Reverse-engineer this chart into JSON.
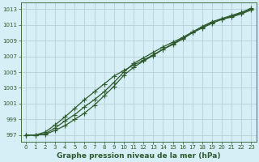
{
  "title": "Graphe pression niveau de la mer (hPa)",
  "background_color": "#d6eef5",
  "grid_color": "#b0c8d0",
  "line_color": "#2d5a2d",
  "x_ticks": [
    0,
    1,
    2,
    3,
    4,
    5,
    6,
    7,
    8,
    9,
    10,
    11,
    12,
    13,
    14,
    15,
    16,
    17,
    18,
    19,
    20,
    21,
    22,
    23
  ],
  "y_ticks": [
    997,
    999,
    1001,
    1003,
    1005,
    1007,
    1009,
    1011,
    1013
  ],
  "xlim": [
    -0.5,
    23.5
  ],
  "ylim": [
    996.2,
    1013.8
  ],
  "series1": [
    997.0,
    997.0,
    997.1,
    997.6,
    998.2,
    999.0,
    999.8,
    1000.8,
    1002.0,
    1003.2,
    1004.6,
    1005.6,
    1006.4,
    1007.1,
    1007.9,
    1008.5,
    1009.2,
    1010.0,
    1010.7,
    1011.3,
    1011.7,
    1012.1,
    1012.5,
    1013.0
  ],
  "series2": [
    997.0,
    997.0,
    997.2,
    997.9,
    998.8,
    999.6,
    1000.6,
    1001.5,
    1002.5,
    1003.7,
    1005.0,
    1006.1,
    1006.8,
    1007.5,
    1008.2,
    1008.8,
    1009.4,
    1010.1,
    1010.8,
    1011.4,
    1011.8,
    1012.2,
    1012.6,
    1013.1
  ],
  "series3": [
    997.0,
    997.0,
    997.4,
    998.3,
    999.3,
    1000.4,
    1001.5,
    1002.5,
    1003.5,
    1004.5,
    1005.2,
    1005.9,
    1006.5,
    1007.2,
    1007.9,
    1008.6,
    1009.3,
    1010.0,
    1010.6,
    1011.2,
    1011.7,
    1012.0,
    1012.4,
    1012.9
  ],
  "marker": "+",
  "marker_size": 4,
  "line_width": 0.9,
  "title_fontsize": 6.5,
  "tick_fontsize": 5
}
